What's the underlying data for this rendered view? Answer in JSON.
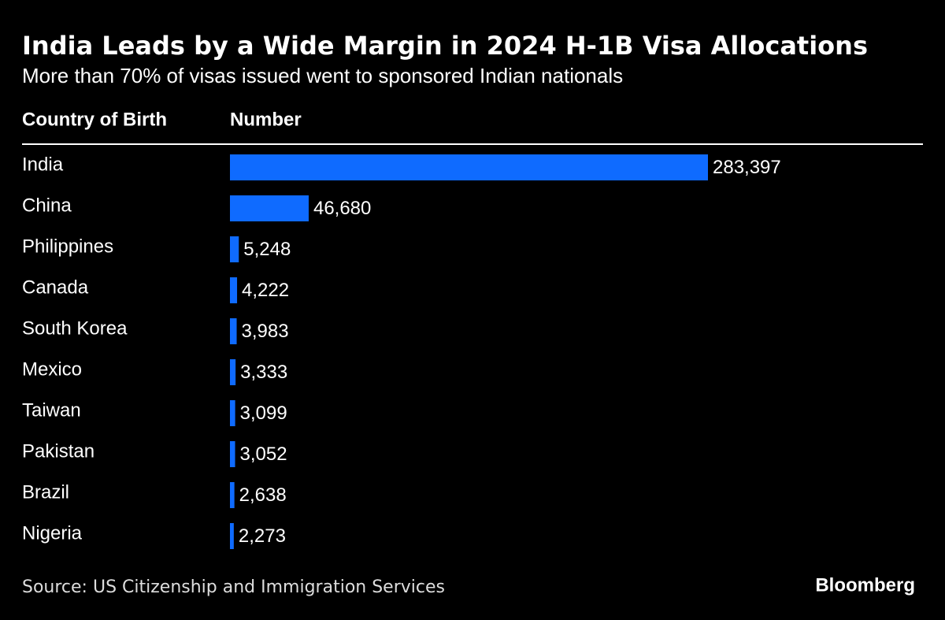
{
  "chart_data": {
    "type": "bar",
    "orientation": "horizontal",
    "title": "India Leads by a Wide Margin in 2024 H-1B Visa Allocations",
    "subtitle": "More than 70% of visas issued went to sponsored Indian nationals",
    "column_headers": [
      "Country of Birth",
      "Number"
    ],
    "categories": [
      "India",
      "China",
      "Philippines",
      "Canada",
      "South Korea",
      "Mexico",
      "Taiwan",
      "Pakistan",
      "Brazil",
      "Nigeria"
    ],
    "values": [
      283397,
      46680,
      5248,
      4222,
      3983,
      3333,
      3099,
      3052,
      2638,
      2273
    ],
    "value_labels": [
      "283,397",
      "46,680",
      "5,248",
      "4,222",
      "3,983",
      "3,333",
      "3,099",
      "3,052",
      "2,638",
      "2,273"
    ],
    "color": "#0f6bff",
    "source": "Source: US Citizenship and Immigration Services",
    "brand": "Bloomberg"
  }
}
